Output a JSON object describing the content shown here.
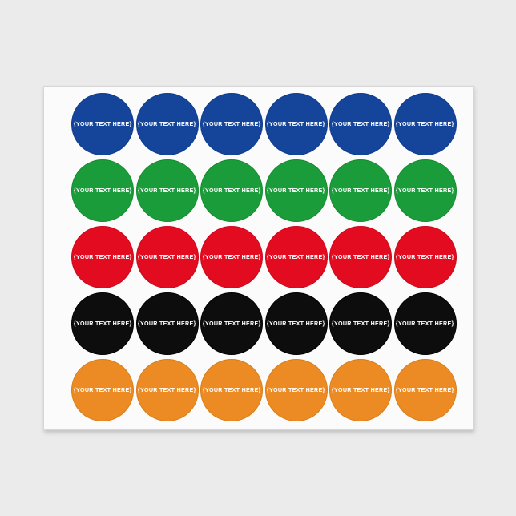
{
  "page": {
    "background_color": "#ebebeb"
  },
  "sheet": {
    "background_color": "#fbfbfb",
    "border_color": "#d7d7d7",
    "sticker_label": "{YOUR TEXT HERE}",
    "text_color": "#ffffff",
    "columns_per_row": 6,
    "row_count": 5,
    "rows": [
      {
        "name": "blue",
        "fill": "#15459b",
        "edge": "#0e3c8c"
      },
      {
        "name": "green",
        "fill": "#1b9c3a",
        "edge": "#128c2e"
      },
      {
        "name": "red",
        "fill": "#e30b20",
        "edge": "#c9091b"
      },
      {
        "name": "black",
        "fill": "#0d0d0d",
        "edge": "#000000"
      },
      {
        "name": "orange",
        "fill": "#ec8b23",
        "edge": "#d97c15"
      }
    ]
  }
}
